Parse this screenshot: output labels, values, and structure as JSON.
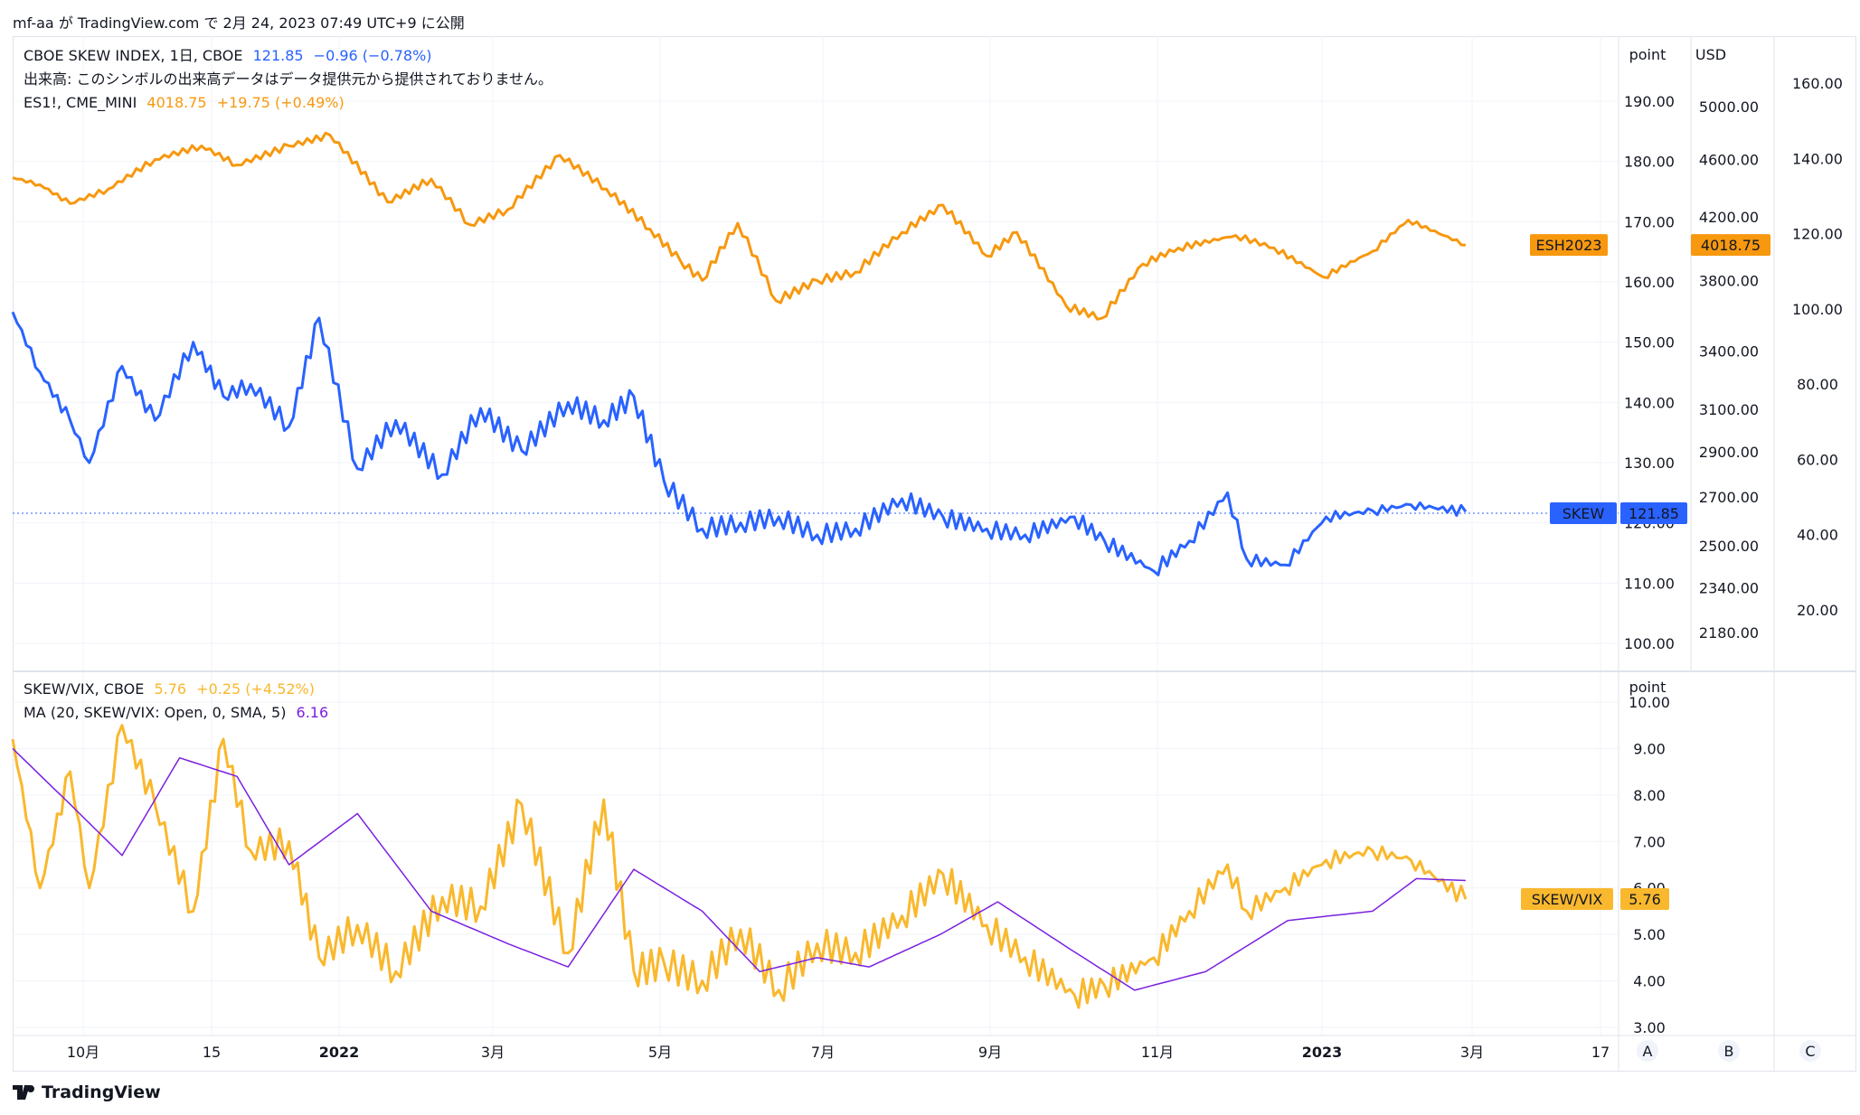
{
  "header": {
    "text": "mf-aa が TradingView.com で 2月 24, 2023 07:49 UTC+9 に公開"
  },
  "legend_top": {
    "skew": {
      "name": "CBOE SKEW INDEX, 1日, CBOE",
      "value": "121.85",
      "change": "−0.96 (−0.78%)"
    },
    "volume_note": "出来高: このシンボルの出来高データはデータ提供元から提供されておりません。",
    "es": {
      "name": "ES1!, CME_MINI",
      "value": "4018.75",
      "change": "+19.75 (+0.49%)"
    }
  },
  "legend_bottom": {
    "ratio": {
      "name": "SKEW/VIX, CBOE",
      "value": "5.76",
      "change": "+0.25 (+4.52%)"
    },
    "ma": {
      "name": "MA (20, SKEW/VIX: Open, 0, SMA, 5)",
      "value": "6.16"
    }
  },
  "axes": {
    "unit_point_top": "point",
    "unit_usd": "USD",
    "unit_point_bottom": "point",
    "point_ticks": [
      "190.00",
      "180.00",
      "170.00",
      "160.00",
      "150.00",
      "140.00",
      "130.00",
      "120.00",
      "110.00",
      "100.00"
    ],
    "usd_ticks": [
      "5000.00",
      "4600.00",
      "4200.00",
      "3800.00",
      "3400.00",
      "3100.00",
      "2900.00",
      "2700.00",
      "2500.00",
      "2340.00",
      "2180.00"
    ],
    "far_ticks": [
      "160.00",
      "140.00",
      "120.00",
      "100.00",
      "80.00",
      "60.00",
      "40.00",
      "20.00"
    ],
    "ratio_ticks": [
      "10.00",
      "9.00",
      "8.00",
      "7.00",
      "6.00",
      "5.00",
      "4.00",
      "3.00"
    ],
    "time_ticks": [
      "10月",
      "15",
      "2022",
      "3月",
      "5月",
      "7月",
      "9月",
      "11月",
      "2023",
      "3月",
      "17"
    ],
    "scale_buttons": [
      "A",
      "B",
      "C"
    ]
  },
  "price_tags": {
    "es_symbol": "ESH2023",
    "es_value": "4018.75",
    "skew_symbol": "SKEW",
    "skew_value": "121.85",
    "ratio_symbol": "SKEW/VIX",
    "ratio_value": "5.76"
  },
  "colors": {
    "es": "#f7980f",
    "skew": "#2962ff",
    "ratio": "#f9b82d",
    "ma": "#7b1fe0",
    "skew_tag": "#2962ff",
    "es_tag": "#f7980f",
    "ratio_tag": "#f9b82d"
  },
  "chart_data": [
    {
      "type": "line",
      "title": "CBOE SKEW INDEX / ES1!",
      "x_range": [
        "2021-09",
        "2023-03"
      ],
      "series": [
        {
          "name": "ES1!, CME_MINI",
          "axis": "USD",
          "x": [
            "2021-09-10",
            "2021-09-20",
            "2021-10-01",
            "2021-10-15",
            "2021-11-01",
            "2021-11-18",
            "2021-12-01",
            "2021-12-20",
            "2022-01-04",
            "2022-01-25",
            "2022-02-10",
            "2022-02-24",
            "2022-03-10",
            "2022-03-29",
            "2022-04-15",
            "2022-05-01",
            "2022-05-12",
            "2022-05-20",
            "2022-06-02",
            "2022-06-16",
            "2022-07-01",
            "2022-07-15",
            "2022-08-01",
            "2022-08-16",
            "2022-09-01",
            "2022-09-12",
            "2022-09-30",
            "2022-10-13",
            "2022-10-28",
            "2022-11-10",
            "2022-12-01",
            "2022-12-15",
            "2023-01-02",
            "2023-01-20",
            "2023-02-02",
            "2023-02-23"
          ],
          "values": [
            4470,
            4420,
            4290,
            4390,
            4600,
            4700,
            4560,
            4700,
            4780,
            4300,
            4460,
            4150,
            4250,
            4630,
            4390,
            4120,
            3920,
            3800,
            4160,
            3680,
            3800,
            3850,
            4100,
            4280,
            3950,
            4100,
            3650,
            3580,
            3900,
            4000,
            4080,
            4000,
            3820,
            3980,
            4180,
            4018.75
          ]
        },
        {
          "name": "CBOE SKEW INDEX",
          "axis": "point",
          "x": [
            "2021-09-10",
            "2021-09-20",
            "2021-10-01",
            "2021-10-08",
            "2021-10-20",
            "2021-11-01",
            "2021-11-15",
            "2021-11-26",
            "2021-12-06",
            "2021-12-20",
            "2021-12-31",
            "2022-01-14",
            "2022-01-28",
            "2022-02-14",
            "2022-02-28",
            "2022-03-15",
            "2022-04-01",
            "2022-04-14",
            "2022-04-25",
            "2022-05-06",
            "2022-05-20",
            "2022-06-03",
            "2022-06-17",
            "2022-07-01",
            "2022-07-15",
            "2022-08-01",
            "2022-08-16",
            "2022-09-01",
            "2022-09-15",
            "2022-10-03",
            "2022-10-14",
            "2022-11-01",
            "2022-11-14",
            "2022-11-28",
            "2022-12-05",
            "2022-12-19",
            "2023-01-03",
            "2023-01-20",
            "2023-02-03",
            "2023-02-23"
          ],
          "values": [
            155,
            145,
            137,
            130,
            146,
            137,
            150,
            141,
            143,
            136,
            154,
            129,
            137,
            128,
            139,
            132,
            140,
            137,
            141,
            127,
            119,
            120,
            121,
            118,
            119,
            124,
            121,
            119,
            118,
            121,
            117,
            112,
            117,
            125,
            114,
            113,
            121,
            122,
            123,
            121.85
          ]
        }
      ],
      "ylabel_left": "point",
      "ylabel_right": "USD",
      "ylim_point": [
        100,
        195
      ],
      "ylim_usd": [
        2100,
        5200
      ]
    },
    {
      "type": "line",
      "title": "SKEW/VIX",
      "series": [
        {
          "name": "SKEW/VIX, CBOE",
          "x": [
            "2021-09-10",
            "2021-09-20",
            "2021-10-01",
            "2021-10-08",
            "2021-10-20",
            "2021-11-01",
            "2021-11-15",
            "2021-11-26",
            "2021-12-06",
            "2021-12-20",
            "2021-12-31",
            "2022-01-14",
            "2022-01-28",
            "2022-02-14",
            "2022-02-28",
            "2022-03-15",
            "2022-04-01",
            "2022-04-14",
            "2022-04-25",
            "2022-05-06",
            "2022-05-20",
            "2022-06-03",
            "2022-06-17",
            "2022-07-01",
            "2022-07-15",
            "2022-08-01",
            "2022-08-16",
            "2022-09-01",
            "2022-09-15",
            "2022-10-03",
            "2022-10-14",
            "2022-11-01",
            "2022-11-14",
            "2022-11-28",
            "2022-12-05",
            "2022-12-19",
            "2023-01-03",
            "2023-01-20",
            "2023-02-03",
            "2023-02-23"
          ],
          "values": [
            9.2,
            6.0,
            8.5,
            6.0,
            9.5,
            7.8,
            5.5,
            9.2,
            6.8,
            7.0,
            4.5,
            5.2,
            4.2,
            5.8,
            5.6,
            7.8,
            4.6,
            7.9,
            4.2,
            4.4,
            4.0,
            5.1,
            3.8,
            4.8,
            4.6,
            5.4,
            6.3,
            5.2,
            4.5,
            3.7,
            3.9,
            4.5,
            5.5,
            6.5,
            5.5,
            6.0,
            6.6,
            6.8,
            6.6,
            5.76
          ]
        },
        {
          "name": "MA (20, SKEW/VIX: Open, 0, SMA, 5)",
          "x": [
            "2021-09-10",
            "2021-10-01",
            "2021-10-20",
            "2021-11-10",
            "2021-12-01",
            "2021-12-20",
            "2022-01-14",
            "2022-02-10",
            "2022-03-10",
            "2022-04-01",
            "2022-04-25",
            "2022-05-20",
            "2022-06-10",
            "2022-07-01",
            "2022-07-20",
            "2022-08-15",
            "2022-09-05",
            "2022-10-01",
            "2022-10-25",
            "2022-11-20",
            "2022-12-20",
            "2023-01-20",
            "2023-02-05",
            "2023-02-23"
          ],
          "values": [
            9.0,
            7.8,
            6.7,
            8.8,
            8.4,
            6.5,
            7.6,
            5.5,
            4.8,
            4.3,
            6.4,
            5.5,
            4.2,
            4.5,
            4.3,
            5.0,
            5.7,
            4.7,
            3.8,
            4.2,
            5.3,
            5.5,
            6.2,
            6.16
          ]
        }
      ],
      "ylabel": "point",
      "ylim": [
        3,
        10
      ]
    }
  ]
}
